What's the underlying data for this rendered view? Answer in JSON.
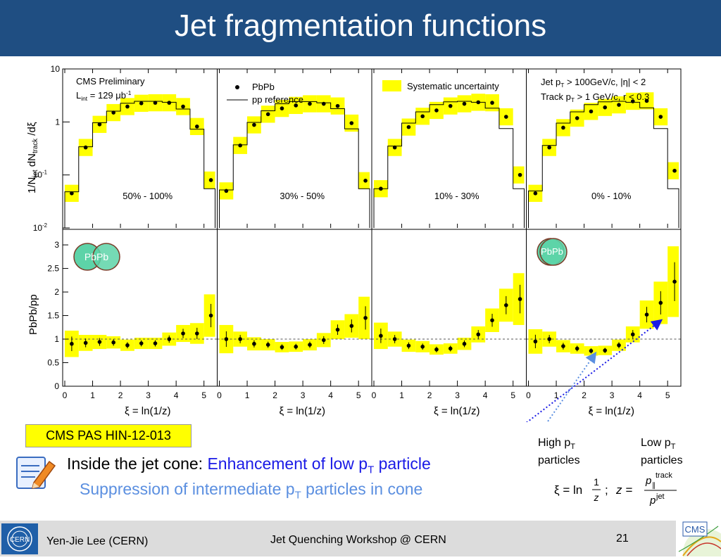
{
  "slide": {
    "title": "Jet fragmentation functions",
    "reference": "CMS PAS HIN-12-013",
    "line1_prefix": "Inside the jet cone: ",
    "line1_highlight_a": "Enhancement of low p",
    "line1_highlight_sub": "T",
    "line1_highlight_b": " particle",
    "line2_a": "Suppression of intermediate p",
    "line2_sub": "T",
    "line2_b": " particles in cone",
    "high_pt_a": "High p",
    "high_pt_sub": "T",
    "high_pt_b": "particles",
    "low_pt_a": "Low p",
    "low_pt_sub": "T",
    "low_pt_b": "particles",
    "formula_xi": "ξ = ln",
    "formula_frac_num": "1",
    "formula_frac_den": "z",
    "formula_sep": ";",
    "formula_z": "z =",
    "formula_num": "p",
    "formula_num_sub": "∥",
    "formula_num_sup": "track",
    "formula_den": "p",
    "formula_den_sup": "jet"
  },
  "footer": {
    "author": "Yen-Jie Lee (CERN)",
    "event": "Jet Quenching Workshop @ CERN",
    "page": "21",
    "cern_logo_text": "CERN",
    "cms_logo_text": "CMS"
  },
  "colors": {
    "title_bg": "#1f4e82",
    "syst_band": "#ffff00",
    "arrow_dark": "#1a1ae6",
    "arrow_light": "#5b8fe0"
  },
  "chart_data": {
    "type": "scatter",
    "xlabel": "ξ = ln(1/z)",
    "xlim": [
      0,
      5.4
    ],
    "x_ticks": [
      "0",
      "1",
      "2",
      "3",
      "4",
      "5"
    ],
    "top": {
      "ylabel": "1/N_jet dN_track /dξ",
      "ylim": [
        0.01,
        10
      ],
      "log_scale": true,
      "y_ticks": [
        {
          "value": 10,
          "mant": "10",
          "exp": ""
        },
        {
          "value": 1,
          "mant": "1",
          "exp": ""
        },
        {
          "value": 0.1,
          "mant": "10",
          "exp": "-1"
        },
        {
          "value": 0.01,
          "mant": "10",
          "exp": "-2"
        }
      ]
    },
    "bottom": {
      "ylabel": "PbPb/pp",
      "ylim": [
        0,
        3.3
      ],
      "y_ticks": [
        "0",
        "0.5",
        "1",
        "1.5",
        "2",
        "2.5",
        "3"
      ],
      "reference_line": 1
    },
    "legend": {
      "cms": "CMS Preliminary",
      "lumi_a": "L",
      "lumi_sub": "int",
      "lumi_b": " = 129 μb",
      "lumi_sup": "-1",
      "pbpb": "PbPb",
      "ppref": "pp reference",
      "syst": "Systematic uncertainty",
      "cut1_a": "Jet p",
      "cut1_sub": "T",
      "cut1_b": " > 100GeV/c, |η| < 2",
      "cut2_a": "Track p",
      "cut2_sub": "T",
      "cut2_b": " > 1 GeV/c, r < 0.3"
    },
    "badge_text": "PbPb",
    "bin_edges": [
      0,
      0.5,
      1,
      1.5,
      2,
      2.5,
      3,
      3.5,
      4,
      4.5,
      5,
      5.4
    ],
    "x": [
      0.25,
      0.75,
      1.25,
      1.75,
      2.25,
      2.75,
      3.25,
      3.75,
      4.25,
      4.75,
      5.25
    ],
    "panels": [
      {
        "label": "50% - 100%",
        "pbpb": [
          0.045,
          0.33,
          0.9,
          1.5,
          1.95,
          2.25,
          2.3,
          2.3,
          1.95,
          0.82,
          0.08
        ],
        "pp": [
          0.048,
          0.34,
          0.97,
          1.6,
          2.25,
          2.45,
          2.45,
          2.35,
          1.75,
          0.73,
          0.055
        ],
        "ratio": [
          0.9,
          0.92,
          0.94,
          0.93,
          0.87,
          0.91,
          0.91,
          1.0,
          1.12,
          1.12,
          1.5
        ],
        "ratio_syst": [
          0.28,
          0.17,
          0.15,
          0.13,
          0.12,
          0.12,
          0.12,
          0.14,
          0.18,
          0.22,
          0.45
        ]
      },
      {
        "label": "30% - 50%",
        "pbpb": [
          0.05,
          0.36,
          0.88,
          1.4,
          1.8,
          2.05,
          2.2,
          2.2,
          2.0,
          0.95,
          0.078
        ],
        "pp": [
          0.052,
          0.37,
          0.98,
          1.62,
          2.2,
          2.42,
          2.42,
          2.3,
          1.78,
          0.74,
          0.055
        ],
        "ratio": [
          1.0,
          1.0,
          0.9,
          0.88,
          0.83,
          0.84,
          0.88,
          0.98,
          1.2,
          1.28,
          1.45
        ],
        "ratio_syst": [
          0.3,
          0.16,
          0.14,
          0.12,
          0.11,
          0.11,
          0.12,
          0.15,
          0.2,
          0.25,
          0.45
        ]
      },
      {
        "label": "10% - 30%",
        "pbpb": [
          0.055,
          0.33,
          0.8,
          1.28,
          1.65,
          2.0,
          2.2,
          2.35,
          2.3,
          1.25,
          0.1
        ],
        "pp": [
          0.055,
          0.35,
          0.95,
          1.55,
          2.12,
          2.4,
          2.45,
          2.35,
          1.82,
          0.75,
          0.055
        ],
        "ratio": [
          1.07,
          1.0,
          0.86,
          0.84,
          0.78,
          0.8,
          0.9,
          1.1,
          1.4,
          1.72,
          1.85
        ],
        "ratio_syst": [
          0.28,
          0.16,
          0.13,
          0.12,
          0.11,
          0.11,
          0.13,
          0.17,
          0.25,
          0.35,
          0.55
        ]
      },
      {
        "label": "0% - 10%",
        "pbpb": [
          0.045,
          0.33,
          0.78,
          1.18,
          1.58,
          1.88,
          2.1,
          2.45,
          2.5,
          1.25,
          0.12
        ],
        "pp": [
          0.05,
          0.36,
          0.95,
          1.55,
          2.12,
          2.4,
          2.45,
          2.35,
          1.85,
          0.75,
          0.055
        ],
        "ratio": [
          0.95,
          1.0,
          0.85,
          0.8,
          0.75,
          0.76,
          0.87,
          1.1,
          1.52,
          1.77,
          2.22
        ],
        "ratio_syst": [
          0.26,
          0.16,
          0.13,
          0.11,
          0.1,
          0.1,
          0.12,
          0.17,
          0.3,
          0.45,
          0.75
        ]
      }
    ]
  }
}
